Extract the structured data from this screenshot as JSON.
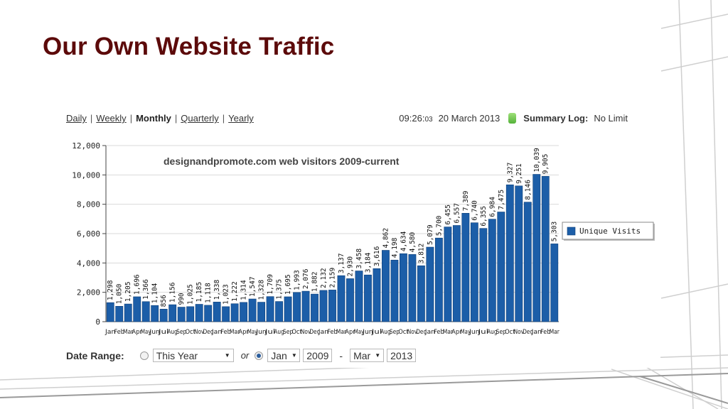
{
  "slide": {
    "title": "Our Own Website Traffic"
  },
  "nav": {
    "daily": "Daily",
    "weekly": "Weekly",
    "monthly": "Monthly",
    "quarterly": "Quarterly",
    "yearly": "Yearly",
    "separator": "|"
  },
  "status": {
    "time": "09:26:",
    "seconds": "03",
    "date": "20 March 2013",
    "summary_label": "Summary Log:",
    "summary_value": "No Limit"
  },
  "date_range": {
    "label": "Date Range:",
    "preset": "This Year",
    "or": "or",
    "from_month": "Jan",
    "from_year": "2009",
    "dash": "-",
    "to_month": "Mar",
    "to_year": "2013"
  },
  "colors": {
    "bar": "#1c5ea8",
    "title": "#5c0a0a"
  },
  "chart_data": {
    "type": "bar",
    "title": "designandpromote.com web visitors 2009-current",
    "xlabel": "",
    "ylabel": "",
    "ylim": [
      0,
      12000
    ],
    "yticks": [
      "0",
      "2,000",
      "4,000",
      "6,000",
      "8,000",
      "10,000",
      "12,000"
    ],
    "legend_position": "right",
    "categories": [
      "Jan",
      "Feb",
      "Mar",
      "Apr",
      "May",
      "Jun",
      "Jul",
      "Aug",
      "Sep",
      "Oct",
      "Nov",
      "Dec",
      "Jan",
      "Feb",
      "Mar",
      "Apr",
      "May",
      "Jun",
      "Jul",
      "Aug",
      "Sep",
      "Oct",
      "Nov",
      "Dec",
      "Jan",
      "Feb",
      "Mar",
      "Apr",
      "May",
      "Jun",
      "Jul",
      "Aug",
      "Sep",
      "Oct",
      "Nov",
      "Dec",
      "Jan",
      "Feb",
      "Mar",
      "Apr",
      "May",
      "Jun",
      "Jul",
      "Aug",
      "Sep",
      "Oct",
      "Nov",
      "Dec",
      "Jan",
      "Feb",
      "Mar"
    ],
    "series": [
      {
        "name": "Unique Visits",
        "values": [
          1298,
          1050,
          1205,
          1696,
          1366,
          1104,
          856,
          1156,
          990,
          1025,
          1185,
          1118,
          1338,
          1023,
          1222,
          1314,
          1547,
          1328,
          1709,
          1375,
          1695,
          1993,
          2076,
          1882,
          2132,
          2159,
          3137,
          2930,
          3458,
          3184,
          3616,
          4862,
          4198,
          4634,
          4580,
          3812,
          5079,
          5700,
          6455,
          6557,
          7389,
          6740,
          6355,
          6984,
          7475,
          9327,
          9251,
          8146,
          10039,
          9905,
          5303
        ],
        "labels": [
          "1,298",
          "1,050",
          "1,205",
          "1,696",
          "1,366",
          "1,104",
          "856",
          "1,156",
          "990",
          "1,025",
          "1,185",
          "1,118",
          "1,338",
          "1,023",
          "1,222",
          "1,314",
          "1,547",
          "1,328",
          "1,709",
          "1,375",
          "1,695",
          "1,993",
          "2,076",
          "1,882",
          "2,132",
          "2,159",
          "3,137",
          "2,930",
          "3,458",
          "3,184",
          "3,616",
          "4,862",
          "4,198",
          "4,634",
          "4,580",
          "3,812",
          "5,079",
          "5,700",
          "6,455",
          "6,557",
          "7,389",
          "6,740",
          "6,355",
          "6,984",
          "7,475",
          "9,327",
          "9,251",
          "8,146",
          "10,039",
          "9,905",
          "5,303"
        ]
      }
    ]
  }
}
